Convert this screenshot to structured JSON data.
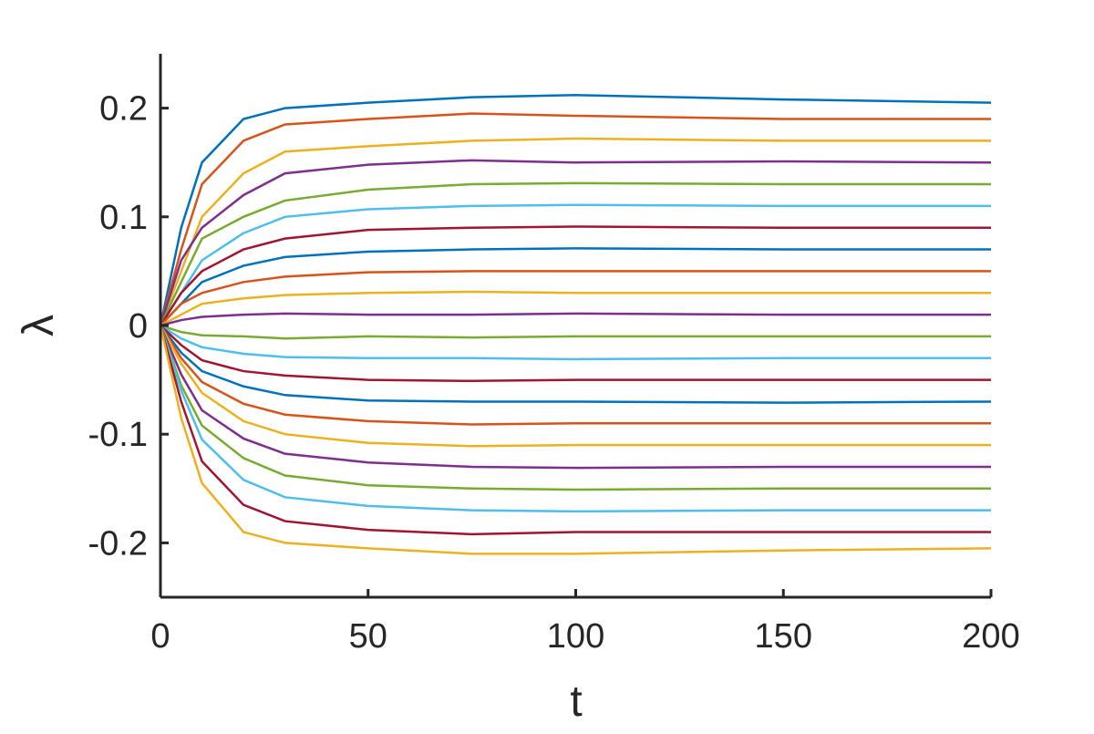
{
  "chart_data": {
    "type": "line",
    "x_label": "t",
    "y_label": "λ",
    "x": [
      0,
      5,
      10,
      20,
      30,
      50,
      75,
      100,
      150,
      200
    ],
    "xlim": [
      0,
      200
    ],
    "xticks": [
      0,
      50,
      100,
      150,
      200
    ],
    "ylim": [
      -0.25,
      0.25
    ],
    "yticks": [
      -0.2,
      -0.1,
      0,
      0.1,
      0.2
    ],
    "grid": false,
    "series": [
      {
        "color": "#0072BD",
        "values": [
          0,
          0.09,
          0.15,
          0.19,
          0.2,
          0.205,
          0.21,
          0.212,
          0.208,
          0.205
        ]
      },
      {
        "color": "#D95319",
        "values": [
          0,
          0.07,
          0.13,
          0.17,
          0.185,
          0.19,
          0.195,
          0.193,
          0.19,
          0.19
        ]
      },
      {
        "color": "#EDB120",
        "values": [
          0,
          0.05,
          0.1,
          0.14,
          0.16,
          0.165,
          0.17,
          0.172,
          0.17,
          0.17
        ]
      },
      {
        "color": "#7E2F8E",
        "values": [
          0,
          0.06,
          0.09,
          0.12,
          0.14,
          0.148,
          0.152,
          0.15,
          0.151,
          0.15
        ]
      },
      {
        "color": "#77AC30",
        "values": [
          0,
          0.04,
          0.08,
          0.1,
          0.115,
          0.125,
          0.13,
          0.131,
          0.13,
          0.13
        ]
      },
      {
        "color": "#4DBEEE",
        "values": [
          0,
          0.03,
          0.06,
          0.085,
          0.1,
          0.107,
          0.11,
          0.111,
          0.11,
          0.11
        ]
      },
      {
        "color": "#A2142F",
        "values": [
          0,
          0.03,
          0.05,
          0.07,
          0.08,
          0.088,
          0.09,
          0.091,
          0.09,
          0.09
        ]
      },
      {
        "color": "#0072BD",
        "values": [
          0,
          0.02,
          0.04,
          0.055,
          0.063,
          0.068,
          0.07,
          0.071,
          0.07,
          0.07
        ]
      },
      {
        "color": "#D95319",
        "values": [
          0,
          0.02,
          0.03,
          0.04,
          0.045,
          0.049,
          0.05,
          0.05,
          0.05,
          0.05
        ]
      },
      {
        "color": "#EDB120",
        "values": [
          0,
          0.01,
          0.02,
          0.025,
          0.028,
          0.03,
          0.031,
          0.03,
          0.03,
          0.03
        ]
      },
      {
        "color": "#7E2F8E",
        "values": [
          0,
          0.005,
          0.008,
          0.01,
          0.011,
          0.01,
          0.01,
          0.011,
          0.01,
          0.01
        ]
      },
      {
        "color": "#77AC30",
        "values": [
          0,
          -0.006,
          -0.009,
          -0.01,
          -0.012,
          -0.01,
          -0.011,
          -0.01,
          -0.01,
          -0.01
        ]
      },
      {
        "color": "#4DBEEE",
        "values": [
          0,
          -0.012,
          -0.02,
          -0.026,
          -0.029,
          -0.03,
          -0.03,
          -0.031,
          -0.03,
          -0.03
        ]
      },
      {
        "color": "#A2142F",
        "values": [
          0,
          -0.018,
          -0.032,
          -0.042,
          -0.046,
          -0.05,
          -0.051,
          -0.05,
          -0.05,
          -0.05
        ]
      },
      {
        "color": "#0072BD",
        "values": [
          0,
          -0.025,
          -0.042,
          -0.056,
          -0.064,
          -0.069,
          -0.07,
          -0.07,
          -0.071,
          -0.07
        ]
      },
      {
        "color": "#D95319",
        "values": [
          0,
          -0.03,
          -0.052,
          -0.072,
          -0.082,
          -0.088,
          -0.091,
          -0.09,
          -0.09,
          -0.09
        ]
      },
      {
        "color": "#EDB120",
        "values": [
          0,
          -0.035,
          -0.062,
          -0.088,
          -0.1,
          -0.108,
          -0.111,
          -0.11,
          -0.11,
          -0.11
        ]
      },
      {
        "color": "#7E2F8E",
        "values": [
          0,
          -0.045,
          -0.078,
          -0.104,
          -0.118,
          -0.126,
          -0.13,
          -0.131,
          -0.13,
          -0.13
        ]
      },
      {
        "color": "#77AC30",
        "values": [
          0,
          -0.055,
          -0.092,
          -0.122,
          -0.138,
          -0.147,
          -0.15,
          -0.151,
          -0.15,
          -0.15
        ]
      },
      {
        "color": "#4DBEEE",
        "values": [
          0,
          -0.06,
          -0.105,
          -0.142,
          -0.158,
          -0.166,
          -0.17,
          -0.171,
          -0.17,
          -0.17
        ]
      },
      {
        "color": "#A2142F",
        "values": [
          0,
          -0.07,
          -0.125,
          -0.165,
          -0.18,
          -0.188,
          -0.192,
          -0.19,
          -0.19,
          -0.19
        ]
      },
      {
        "color": "#EDB120",
        "values": [
          0,
          -0.085,
          -0.145,
          -0.19,
          -0.2,
          -0.205,
          -0.21,
          -0.21,
          -0.207,
          -0.205
        ]
      }
    ]
  }
}
